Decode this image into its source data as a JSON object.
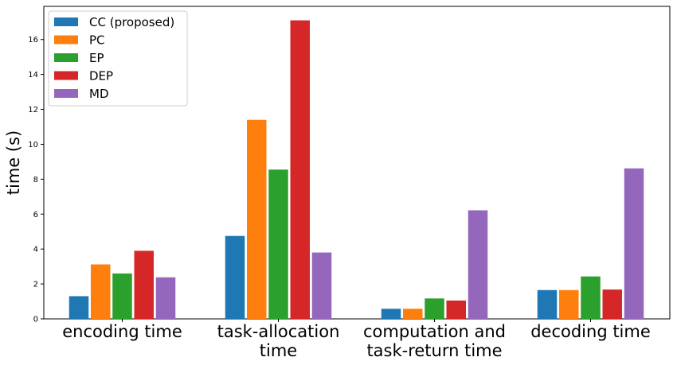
{
  "chart_data": {
    "type": "bar",
    "title": "",
    "xlabel": "",
    "ylabel": "time (s)",
    "ylim": [
      0,
      17.9
    ],
    "yticks": [
      0,
      2,
      4,
      6,
      8,
      10,
      12,
      14,
      16
    ],
    "grid": false,
    "legend_position": "top-left",
    "categories": [
      [
        "encoding time"
      ],
      [
        "task-allocation",
        "time"
      ],
      [
        "computation and",
        "task-return time"
      ],
      [
        "decoding time"
      ]
    ],
    "series": [
      {
        "name": "CC (proposed)",
        "color": "#1f77b4",
        "values": [
          1.3,
          4.75,
          0.58,
          1.65
        ]
      },
      {
        "name": "PC",
        "color": "#ff7f0e",
        "values": [
          3.12,
          11.4,
          0.58,
          1.65
        ]
      },
      {
        "name": "EP",
        "color": "#2ca02c",
        "values": [
          2.6,
          8.55,
          1.17,
          2.43
        ]
      },
      {
        "name": "DEP",
        "color": "#d62728",
        "values": [
          3.9,
          17.1,
          1.05,
          1.68
        ]
      },
      {
        "name": "MD",
        "color": "#9467bd",
        "values": [
          2.38,
          3.8,
          6.22,
          8.62
        ]
      }
    ]
  }
}
